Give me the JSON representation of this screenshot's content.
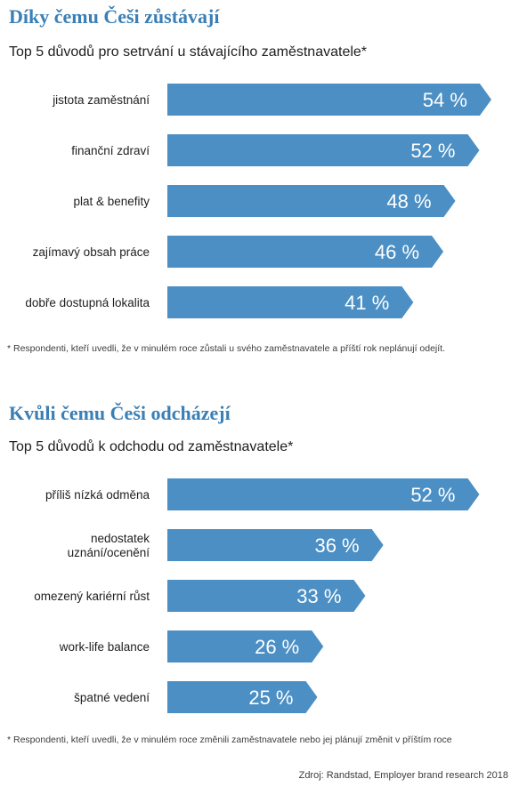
{
  "colors": {
    "title": "#3a7fb5",
    "bar": "#4b8fc4",
    "bar_text": "#ffffff"
  },
  "source": "Zdroj: Randstad, Employer brand research 2018",
  "chart_data": [
    {
      "type": "bar",
      "orientation": "horizontal",
      "title": "Díky čemu Češi zůstávají",
      "subtitle": "Top 5 důvodů pro setrvání u stávajícího zaměstnavatele*",
      "categories": [
        "jistota zaměstnání",
        "finanční zdraví",
        "plat & benefity",
        "zajímavý obsah práce",
        "dobře dostupná lokalita"
      ],
      "values": [
        54,
        52,
        48,
        46,
        41
      ],
      "value_labels": [
        "54 %",
        "52 %",
        "48 %",
        "46 %",
        "41 %"
      ],
      "unit": "%",
      "footnote": "* Respondenti, kteří uvedli, že v minulém roce zůstali u svého zaměstnavatele a příští rok neplánují odejít."
    },
    {
      "type": "bar",
      "orientation": "horizontal",
      "title": "Kvůli čemu Češi odcházejí",
      "subtitle": "Top 5 důvodů k odchodu od zaměstnavatele*",
      "categories": [
        "příliš nízká odměna",
        "nedostatek\nuznání/ocenění",
        "omezený kariérní růst",
        "work-life balance",
        "špatné vedení"
      ],
      "values": [
        52,
        36,
        33,
        26,
        25
      ],
      "value_labels": [
        "52 %",
        "36 %",
        "33 %",
        "26 %",
        "25 %"
      ],
      "unit": "%",
      "footnote": "* Respondenti, kteří uvedli, že v minulém roce změnili zaměstnavatele nebo jej plánují změnit v příštím roce"
    }
  ]
}
